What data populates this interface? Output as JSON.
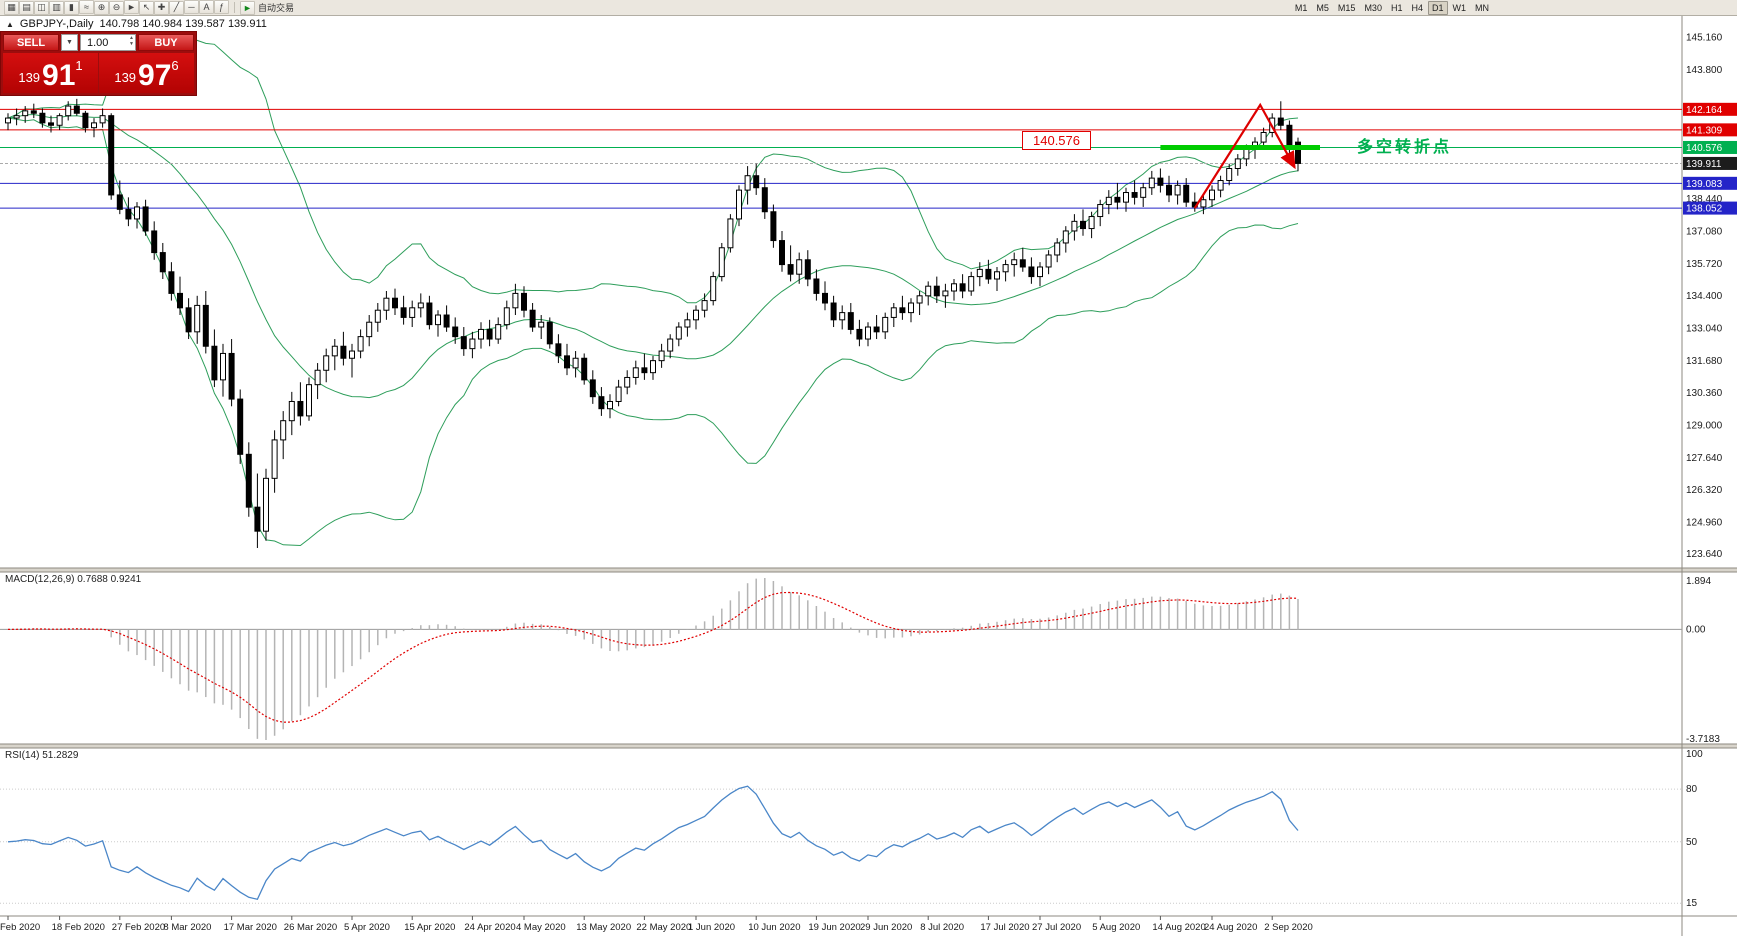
{
  "toolbar": {
    "icons": [
      {
        "name": "new-order-icon",
        "glyph": "▦"
      },
      {
        "name": "chart-window-icon",
        "glyph": "▤"
      },
      {
        "name": "profiles-icon",
        "glyph": "◫"
      },
      {
        "name": "bar-chart-icon",
        "glyph": "▥"
      },
      {
        "name": "candlestick-chart-icon",
        "glyph": "▮"
      },
      {
        "name": "line-chart-icon",
        "glyph": "≈"
      },
      {
        "name": "zoom-in-icon",
        "glyph": "⊕"
      },
      {
        "name": "zoom-out-icon",
        "glyph": "⊖"
      },
      {
        "name": "autotrading-icon",
        "glyph": "►"
      },
      {
        "name": "cursor-icon",
        "glyph": "↖"
      },
      {
        "name": "crosshair-icon",
        "glyph": "✚"
      },
      {
        "name": "trendline-icon",
        "glyph": "╱"
      },
      {
        "name": "horizontal-line-icon",
        "glyph": "─"
      },
      {
        "name": "text-label-icon",
        "glyph": "A"
      },
      {
        "name": "indicators-icon",
        "glyph": "ƒ"
      }
    ],
    "autotrading_label": "自动交易",
    "timeframes": [
      "M1",
      "M5",
      "M15",
      "M30",
      "H1",
      "H4",
      "D1",
      "W1",
      "MN"
    ],
    "active_timeframe": "D1"
  },
  "chart": {
    "symbol": "GBPJPY-,Daily",
    "ohlc_text": "140.798 140.984 139.587 139.911"
  },
  "trade_panel": {
    "sell_label": "SELL",
    "buy_label": "BUY",
    "volume_value": "1.00",
    "dropdown_glyph": "▼",
    "sell_price_prefix": "139",
    "sell_price_big": "91",
    "sell_price_sup": "1",
    "buy_price_prefix": "139",
    "buy_price_big": "97",
    "buy_price_sup": "6"
  },
  "annotations": {
    "price_callout": "140.576",
    "note_cn": "多空转折点"
  },
  "chart_data": {
    "type": "candlestick",
    "title": "GBPJPY- Daily",
    "y_range": [
      123.4,
      145.8
    ],
    "price_ticks": [
      "145.160",
      "143.800",
      "138.440",
      "137.080",
      "135.720",
      "134.400",
      "133.040",
      "131.680",
      "130.360",
      "129.000",
      "127.640",
      "126.320",
      "124.960",
      "123.640"
    ],
    "x_labels": [
      {
        "label": "Feb 2020",
        "i": 0
      },
      {
        "label": "18 Feb 2020",
        "i": 6
      },
      {
        "label": "27 Feb 2020",
        "i": 13
      },
      {
        "label": "8 Mar 2020",
        "i": 19
      },
      {
        "label": "17 Mar 2020",
        "i": 26
      },
      {
        "label": "26 Mar 2020",
        "i": 33
      },
      {
        "label": "5 Apr 2020",
        "i": 40
      },
      {
        "label": "15 Apr 2020",
        "i": 47
      },
      {
        "label": "24 Apr 2020",
        "i": 54
      },
      {
        "label": "4 May 2020",
        "i": 60
      },
      {
        "label": "13 May 2020",
        "i": 67
      },
      {
        "label": "22 May 2020",
        "i": 74
      },
      {
        "label": "1 Jun 2020",
        "i": 80
      },
      {
        "label": "10 Jun 2020",
        "i": 87
      },
      {
        "label": "19 Jun 2020",
        "i": 94
      },
      {
        "label": "29 Jun 2020",
        "i": 100
      },
      {
        "label": "8 Jul 2020",
        "i": 107
      },
      {
        "label": "17 Jul 2020",
        "i": 114
      },
      {
        "label": "27 Jul 2020",
        "i": 120
      },
      {
        "label": "5 Aug 2020",
        "i": 127
      },
      {
        "label": "14 Aug 2020",
        "i": 134
      },
      {
        "label": "24 Aug 2020",
        "i": 140
      },
      {
        "label": "2 Sep 2020",
        "i": 147
      }
    ],
    "ohlc": [
      [
        141.6,
        142.0,
        141.3,
        141.8
      ],
      [
        141.8,
        142.2,
        141.5,
        141.9
      ],
      [
        141.9,
        142.3,
        141.6,
        142.1
      ],
      [
        142.1,
        142.4,
        141.8,
        142.0
      ],
      [
        142.0,
        142.2,
        141.4,
        141.6
      ],
      [
        141.6,
        141.9,
        141.2,
        141.5
      ],
      [
        141.5,
        142.0,
        141.3,
        141.9
      ],
      [
        141.9,
        142.5,
        141.7,
        142.3
      ],
      [
        142.3,
        142.6,
        141.9,
        142.0
      ],
      [
        142.0,
        142.1,
        141.2,
        141.4
      ],
      [
        141.4,
        141.8,
        141.0,
        141.6
      ],
      [
        141.6,
        142.2,
        141.4,
        141.9
      ],
      [
        141.9,
        142.0,
        138.4,
        138.6
      ],
      [
        138.6,
        139.2,
        137.8,
        138.0
      ],
      [
        138.0,
        138.5,
        137.3,
        137.6
      ],
      [
        137.6,
        138.3,
        137.2,
        138.1
      ],
      [
        138.1,
        138.4,
        136.9,
        137.1
      ],
      [
        137.1,
        137.5,
        135.9,
        136.2
      ],
      [
        136.2,
        136.6,
        135.1,
        135.4
      ],
      [
        135.4,
        135.8,
        134.2,
        134.5
      ],
      [
        134.5,
        135.2,
        133.6,
        133.9
      ],
      [
        133.9,
        134.3,
        132.6,
        132.9
      ],
      [
        132.9,
        134.4,
        132.4,
        134.0
      ],
      [
        134.0,
        134.6,
        132.0,
        132.3
      ],
      [
        132.3,
        133.0,
        130.6,
        130.9
      ],
      [
        130.9,
        132.4,
        130.2,
        132.0
      ],
      [
        132.0,
        132.6,
        129.8,
        130.1
      ],
      [
        130.1,
        130.5,
        127.4,
        127.8
      ],
      [
        127.8,
        128.3,
        125.2,
        125.6
      ],
      [
        125.6,
        127.0,
        123.9,
        124.6
      ],
      [
        124.6,
        127.2,
        124.2,
        126.8
      ],
      [
        126.8,
        128.8,
        126.2,
        128.4
      ],
      [
        128.4,
        129.6,
        127.6,
        129.2
      ],
      [
        129.2,
        130.4,
        128.6,
        130.0
      ],
      [
        130.0,
        130.8,
        129.0,
        129.4
      ],
      [
        129.4,
        131.0,
        129.2,
        130.7
      ],
      [
        130.7,
        131.6,
        130.1,
        131.3
      ],
      [
        131.3,
        132.2,
        130.8,
        131.9
      ],
      [
        131.9,
        132.6,
        131.3,
        132.3
      ],
      [
        132.3,
        132.9,
        131.5,
        131.8
      ],
      [
        131.8,
        132.4,
        131.0,
        132.1
      ],
      [
        132.1,
        133.0,
        131.8,
        132.7
      ],
      [
        132.7,
        133.6,
        132.3,
        133.3
      ],
      [
        133.3,
        134.1,
        132.9,
        133.8
      ],
      [
        133.8,
        134.6,
        133.4,
        134.3
      ],
      [
        134.3,
        134.7,
        133.6,
        133.9
      ],
      [
        133.9,
        134.4,
        133.2,
        133.5
      ],
      [
        133.5,
        134.2,
        133.1,
        133.9
      ],
      [
        133.9,
        134.5,
        133.5,
        134.1
      ],
      [
        134.1,
        134.4,
        133.0,
        133.2
      ],
      [
        133.2,
        133.8,
        132.7,
        133.6
      ],
      [
        133.6,
        134.0,
        132.9,
        133.1
      ],
      [
        133.1,
        133.5,
        132.4,
        132.7
      ],
      [
        132.7,
        133.1,
        131.9,
        132.2
      ],
      [
        132.2,
        132.9,
        131.8,
        132.6
      ],
      [
        132.6,
        133.3,
        132.2,
        133.0
      ],
      [
        133.0,
        133.4,
        132.3,
        132.6
      ],
      [
        132.6,
        133.5,
        132.4,
        133.2
      ],
      [
        133.2,
        134.2,
        133.0,
        133.9
      ],
      [
        133.9,
        134.9,
        133.6,
        134.5
      ],
      [
        134.5,
        134.8,
        133.5,
        133.8
      ],
      [
        133.8,
        134.1,
        132.9,
        133.1
      ],
      [
        133.1,
        133.6,
        132.6,
        133.3
      ],
      [
        133.3,
        133.5,
        132.2,
        132.4
      ],
      [
        132.4,
        132.8,
        131.6,
        131.9
      ],
      [
        131.9,
        132.4,
        131.1,
        131.4
      ],
      [
        131.4,
        132.1,
        131.0,
        131.8
      ],
      [
        131.8,
        132.0,
        130.7,
        130.9
      ],
      [
        130.9,
        131.3,
        129.9,
        130.2
      ],
      [
        130.2,
        130.6,
        129.4,
        129.7
      ],
      [
        129.7,
        130.3,
        129.3,
        130.0
      ],
      [
        130.0,
        130.9,
        129.8,
        130.6
      ],
      [
        130.6,
        131.3,
        130.3,
        131.0
      ],
      [
        131.0,
        131.7,
        130.7,
        131.4
      ],
      [
        131.4,
        132.0,
        130.9,
        131.2
      ],
      [
        131.2,
        131.9,
        130.9,
        131.7
      ],
      [
        131.7,
        132.4,
        131.4,
        132.1
      ],
      [
        132.1,
        132.8,
        131.8,
        132.6
      ],
      [
        132.6,
        133.3,
        132.3,
        133.1
      ],
      [
        133.1,
        133.7,
        132.7,
        133.4
      ],
      [
        133.4,
        134.0,
        133.0,
        133.8
      ],
      [
        133.8,
        134.5,
        133.5,
        134.2
      ],
      [
        134.2,
        135.4,
        134.0,
        135.2
      ],
      [
        135.2,
        136.6,
        135.0,
        136.4
      ],
      [
        136.4,
        137.8,
        136.2,
        137.6
      ],
      [
        137.6,
        139.0,
        137.3,
        138.8
      ],
      [
        138.8,
        139.8,
        138.2,
        139.4
      ],
      [
        139.4,
        139.9,
        138.6,
        138.9
      ],
      [
        138.9,
        139.3,
        137.6,
        137.9
      ],
      [
        137.9,
        138.2,
        136.4,
        136.7
      ],
      [
        136.7,
        137.1,
        135.4,
        135.7
      ],
      [
        135.7,
        136.5,
        135.0,
        135.3
      ],
      [
        135.3,
        136.2,
        134.9,
        135.9
      ],
      [
        135.9,
        136.3,
        134.8,
        135.1
      ],
      [
        135.1,
        135.5,
        134.2,
        134.5
      ],
      [
        134.5,
        135.0,
        133.8,
        134.1
      ],
      [
        134.1,
        134.4,
        133.1,
        133.4
      ],
      [
        133.4,
        134.0,
        133.0,
        133.7
      ],
      [
        133.7,
        134.1,
        132.8,
        133.0
      ],
      [
        133.0,
        133.4,
        132.3,
        132.6
      ],
      [
        132.6,
        133.3,
        132.3,
        133.1
      ],
      [
        133.1,
        133.6,
        132.6,
        132.9
      ],
      [
        132.9,
        133.7,
        132.6,
        133.5
      ],
      [
        133.5,
        134.1,
        133.1,
        133.9
      ],
      [
        133.9,
        134.4,
        133.4,
        133.7
      ],
      [
        133.7,
        134.3,
        133.3,
        134.1
      ],
      [
        134.1,
        134.6,
        133.6,
        134.4
      ],
      [
        134.4,
        135.0,
        134.0,
        134.8
      ],
      [
        134.8,
        135.2,
        134.1,
        134.4
      ],
      [
        134.4,
        134.9,
        133.9,
        134.6
      ],
      [
        134.6,
        135.1,
        134.2,
        134.9
      ],
      [
        134.9,
        135.3,
        134.3,
        134.6
      ],
      [
        134.6,
        135.4,
        134.4,
        135.2
      ],
      [
        135.2,
        135.8,
        134.8,
        135.5
      ],
      [
        135.5,
        135.9,
        134.9,
        135.1
      ],
      [
        135.1,
        135.6,
        134.6,
        135.4
      ],
      [
        135.4,
        135.9,
        135.0,
        135.7
      ],
      [
        135.7,
        136.2,
        135.2,
        135.9
      ],
      [
        135.9,
        136.4,
        135.4,
        135.6
      ],
      [
        135.6,
        136.0,
        134.9,
        135.2
      ],
      [
        135.2,
        135.8,
        134.8,
        135.6
      ],
      [
        135.6,
        136.3,
        135.3,
        136.1
      ],
      [
        136.1,
        136.8,
        135.8,
        136.6
      ],
      [
        136.6,
        137.3,
        136.2,
        137.1
      ],
      [
        137.1,
        137.8,
        136.7,
        137.5
      ],
      [
        137.5,
        138.0,
        136.9,
        137.2
      ],
      [
        137.2,
        137.9,
        136.8,
        137.7
      ],
      [
        137.7,
        138.4,
        137.3,
        138.2
      ],
      [
        138.2,
        138.8,
        137.8,
        138.5
      ],
      [
        138.5,
        139.1,
        138.0,
        138.3
      ],
      [
        138.3,
        138.9,
        137.9,
        138.7
      ],
      [
        138.7,
        139.2,
        138.2,
        138.5
      ],
      [
        138.5,
        139.1,
        138.1,
        138.9
      ],
      [
        138.9,
        139.6,
        138.6,
        139.3
      ],
      [
        139.3,
        139.7,
        138.7,
        139.0
      ],
      [
        139.0,
        139.4,
        138.3,
        138.6
      ],
      [
        138.6,
        139.2,
        138.2,
        139.0
      ],
      [
        139.0,
        139.3,
        138.1,
        138.3
      ],
      [
        138.3,
        138.7,
        137.9,
        138.1
      ],
      [
        138.1,
        138.6,
        137.8,
        138.4
      ],
      [
        138.4,
        139.0,
        138.1,
        138.8
      ],
      [
        138.8,
        139.4,
        138.5,
        139.2
      ],
      [
        139.2,
        139.9,
        139.0,
        139.7
      ],
      [
        139.7,
        140.3,
        139.4,
        140.1
      ],
      [
        140.1,
        140.7,
        139.8,
        140.5
      ],
      [
        140.5,
        141.0,
        140.1,
        140.8
      ],
      [
        140.8,
        141.4,
        140.5,
        141.2
      ],
      [
        141.2,
        142.0,
        141.0,
        141.8
      ],
      [
        141.8,
        142.5,
        141.3,
        141.5
      ],
      [
        141.5,
        141.7,
        140.3,
        140.5
      ],
      [
        140.798,
        140.984,
        139.587,
        139.911
      ]
    ],
    "overlays": {
      "bollinger_bands": {
        "period": 20,
        "deviation": 2,
        "color": "#2e9e5b"
      },
      "horizontal_lines": [
        {
          "price": 142.164,
          "color": "#e00000"
        },
        {
          "price": 141.309,
          "color": "#e00000"
        },
        {
          "price": 140.576,
          "color": "#00b050"
        },
        {
          "price": 139.083,
          "color": "#2424c8"
        },
        {
          "price": 138.052,
          "color": "#2424c8"
        }
      ],
      "current_price": {
        "price": 139.911,
        "label_bg": "#1c1c1c"
      },
      "thick_line": {
        "price": 140.576,
        "from_i": 134,
        "to_x": 1320,
        "color": "#00cc00",
        "width": 5
      },
      "trend_arrow": {
        "color": "#dd0000",
        "points_ip": [
          [
            138,
            138.05
          ],
          [
            145.6,
            142.35
          ],
          [
            149.6,
            139.75
          ]
        ]
      }
    },
    "macd": {
      "label": "MACD(12,26,9) 0.7688 0.9241",
      "fast": 12,
      "slow": 26,
      "signal": 9,
      "ticks": [
        "1.894",
        "0.00",
        "-3.7183"
      ],
      "hist_color": "#b4b4b4",
      "signal_color": "#e00000"
    },
    "rsi": {
      "label": "RSI(14) 51.2829",
      "period": 14,
      "ticks": [
        "100",
        "80",
        "50",
        "15"
      ],
      "tick_values": [
        100,
        80,
        50,
        15
      ],
      "levels": [
        80,
        50,
        15
      ],
      "color": "#4a86c8"
    }
  }
}
